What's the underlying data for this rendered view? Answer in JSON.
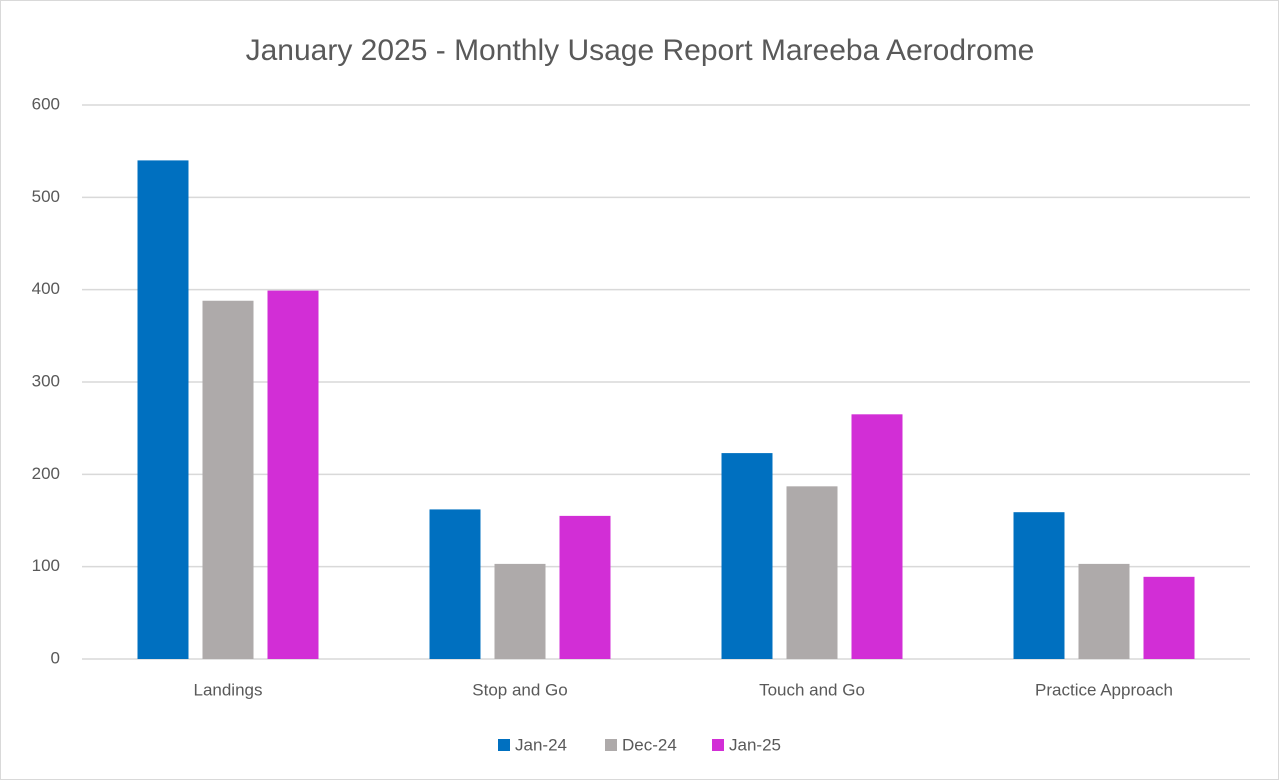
{
  "chart_data": {
    "type": "bar",
    "title": "January 2025 - Monthly Usage Report Mareeba Aerodrome",
    "categories": [
      "Landings",
      "Stop and Go",
      "Touch and Go",
      "Practice Approach"
    ],
    "series": [
      {
        "name": "Jan-24",
        "color": "#0070c0",
        "values": [
          540,
          162,
          223,
          159
        ]
      },
      {
        "name": "Dec-24",
        "color": "#aeaaaa",
        "values": [
          388,
          103,
          187,
          103
        ]
      },
      {
        "name": "Jan-25",
        "color": "#d22ed6",
        "values": [
          399,
          155,
          265,
          89
        ]
      }
    ],
    "ylim": [
      0,
      600
    ],
    "yticks": [
      0,
      100,
      200,
      300,
      400,
      500,
      600
    ],
    "grid": true,
    "legend": "bottom"
  }
}
